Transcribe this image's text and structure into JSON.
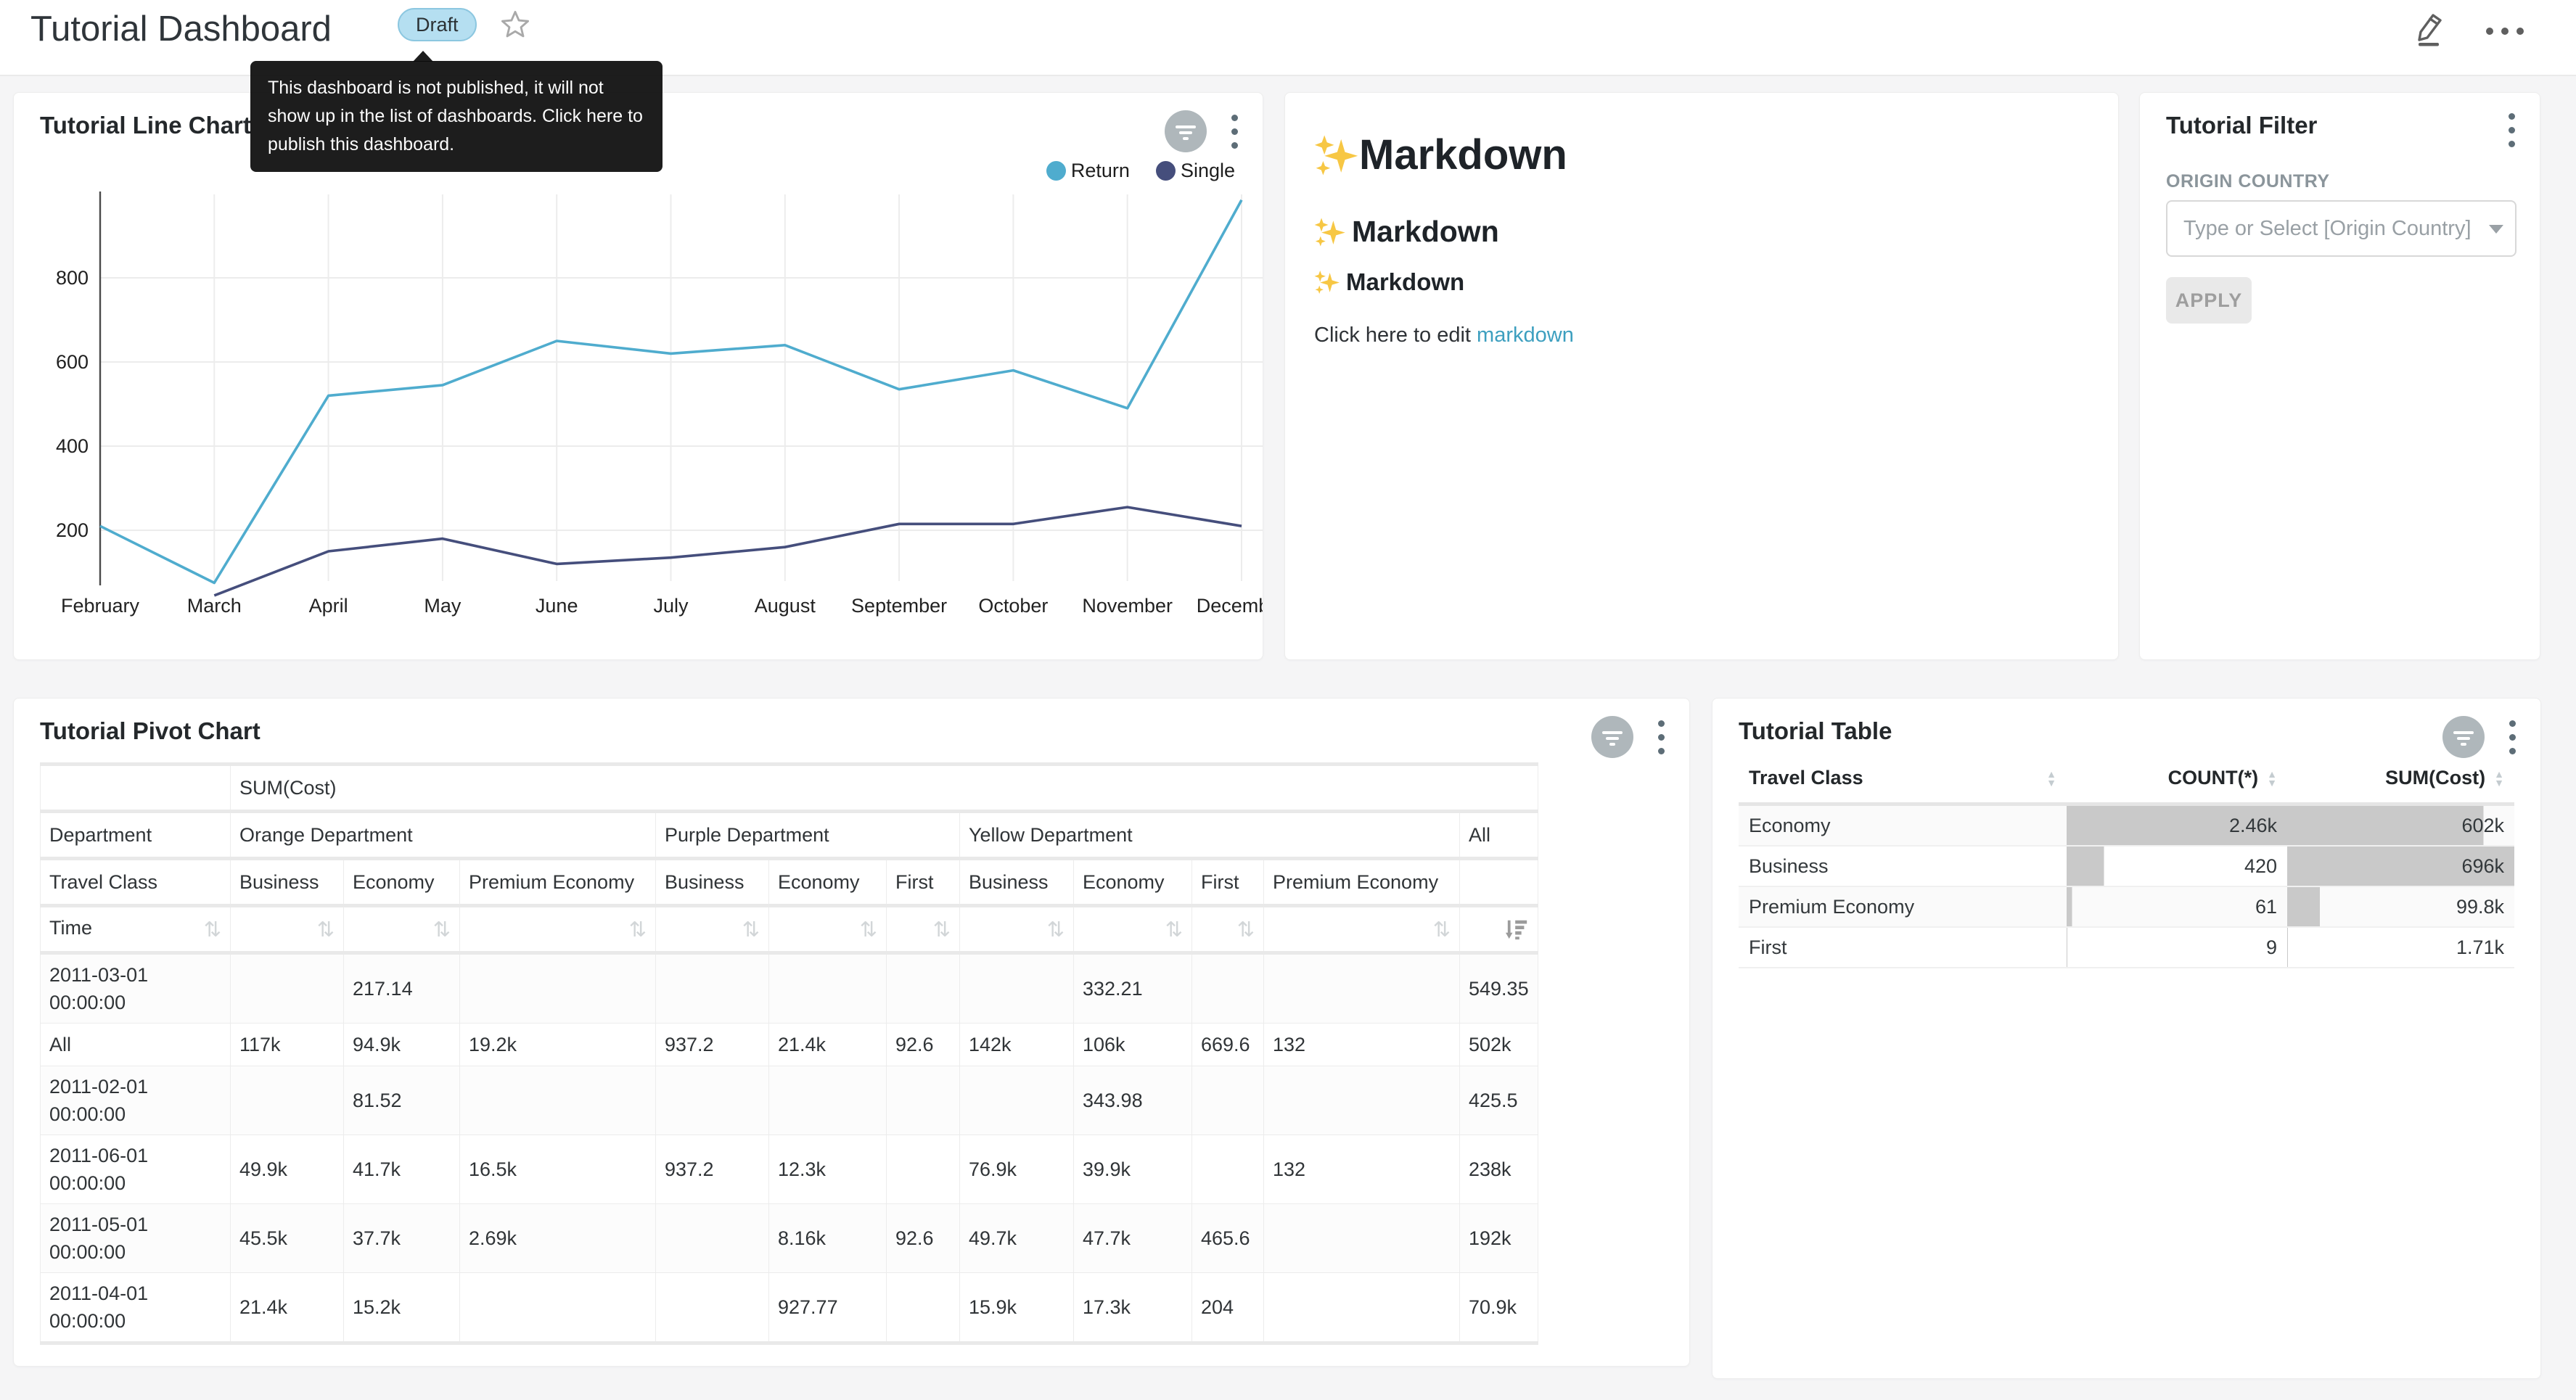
{
  "colors": {
    "page_background": "#F5F5F6",
    "card_background": "#FFFFFF",
    "return_series": "#4FACCE",
    "single_series": "#454E7C",
    "link": "#3D9FBF",
    "draft_badge_bg": "#B5DFF1",
    "table_bar": "#C9C9C9",
    "tooltip_bg": "#0A0A0A"
  },
  "icons": {
    "edit": "✎",
    "more": "…",
    "star": "☆",
    "kebab": "⋮",
    "filter_indicator": "funnel-lines",
    "sort_both": "⇅",
    "sort_caret_up": "▲",
    "sort_caret_down": "▼",
    "dropdown_caret": "▾",
    "sparkles": "✨"
  },
  "header": {
    "title": "Tutorial Dashboard",
    "badge": "Draft",
    "tooltip": "This dashboard is not published, it will not show up in the list of dashboards. Click here to publish this dashboard."
  },
  "chart_data": {
    "type": "line",
    "title": "Tutorial Line Chart",
    "x": [
      "February",
      "March",
      "April",
      "May",
      "June",
      "July",
      "August",
      "September",
      "October",
      "November",
      "December"
    ],
    "series": [
      {
        "name": "Return",
        "color": "#4FACCE",
        "values": [
          210,
          75,
          520,
          545,
          650,
          620,
          640,
          535,
          580,
          490,
          985
        ]
      },
      {
        "name": "Single",
        "color": "#454E7C",
        "values": [
          null,
          45,
          150,
          180,
          120,
          135,
          160,
          215,
          215,
          255,
          210
        ]
      }
    ],
    "yticks": [
      200,
      400,
      600,
      800
    ],
    "ylim": [
      60,
      1000
    ],
    "grid": true,
    "legend_position": "top-right"
  },
  "markdown_card": {
    "h1": "Markdown",
    "h2": "Markdown",
    "h3": "Markdown",
    "paragraph_prefix": "Click here to edit ",
    "link_text": "markdown"
  },
  "filter_card": {
    "title": "Tutorial Filter",
    "field_label": "ORIGIN COUNTRY",
    "select_placeholder": "Type or Select [Origin Country]",
    "apply_label": "APPLY"
  },
  "pivot_card": {
    "title": "Tutorial Pivot Chart",
    "metric_label": "SUM(Cost)",
    "row_dim_label": "Department",
    "col_groups": [
      {
        "label": "Orange Department",
        "span": 3
      },
      {
        "label": "Purple Department",
        "span": 3
      },
      {
        "label": "Yellow Department",
        "span": 4
      },
      {
        "label": "All",
        "span": 1
      }
    ],
    "class_row_label": "Travel Class",
    "class_columns": [
      "Business",
      "Economy",
      "Premium Economy",
      "Business",
      "Economy",
      "First",
      "Business",
      "Economy",
      "First",
      "Premium Economy",
      ""
    ],
    "time_label": "Time",
    "rows": [
      {
        "label": "2011-03-01",
        "sublabel": "00:00:00",
        "values": [
          "",
          "217.14",
          "",
          "",
          "",
          "",
          "",
          "332.21",
          "",
          "",
          "549.35"
        ]
      },
      {
        "label": "All",
        "sublabel": "",
        "values": [
          "117k",
          "94.9k",
          "19.2k",
          "937.2",
          "21.4k",
          "92.6",
          "142k",
          "106k",
          "669.6",
          "132",
          "502k"
        ]
      },
      {
        "label": "2011-02-01",
        "sublabel": "00:00:00",
        "values": [
          "",
          "81.52",
          "",
          "",
          "",
          "",
          "",
          "343.98",
          "",
          "",
          "425.5"
        ]
      },
      {
        "label": "2011-06-01",
        "sublabel": "00:00:00",
        "values": [
          "49.9k",
          "41.7k",
          "16.5k",
          "937.2",
          "12.3k",
          "",
          "76.9k",
          "39.9k",
          "",
          "132",
          "238k"
        ]
      },
      {
        "label": "2011-05-01",
        "sublabel": "00:00:00",
        "values": [
          "45.5k",
          "37.7k",
          "2.69k",
          "",
          "8.16k",
          "92.6",
          "49.7k",
          "47.7k",
          "465.6",
          "",
          "192k"
        ]
      },
      {
        "label": "2011-04-01",
        "sublabel": "00:00:00",
        "values": [
          "21.4k",
          "15.2k",
          "",
          "",
          "927.77",
          "",
          "15.9k",
          "17.3k",
          "204",
          "",
          "70.9k"
        ]
      }
    ]
  },
  "table_card": {
    "title": "Tutorial Table",
    "columns": [
      "Travel Class",
      "COUNT(*)",
      "SUM(Cost)"
    ],
    "rows": [
      {
        "travel_class": "Economy",
        "count": "2.46k",
        "sum": "602k",
        "count_pct": 100,
        "sum_pct": 86.5
      },
      {
        "travel_class": "Business",
        "count": "420",
        "sum": "696k",
        "count_pct": 17,
        "sum_pct": 100
      },
      {
        "travel_class": "Premium Economy",
        "count": "61",
        "sum": "99.8k",
        "count_pct": 2.5,
        "sum_pct": 14.3
      },
      {
        "travel_class": "First",
        "count": "9",
        "sum": "1.71k",
        "count_pct": 0.4,
        "sum_pct": 0.3
      }
    ],
    "bar_color": "#C9C9C9"
  }
}
